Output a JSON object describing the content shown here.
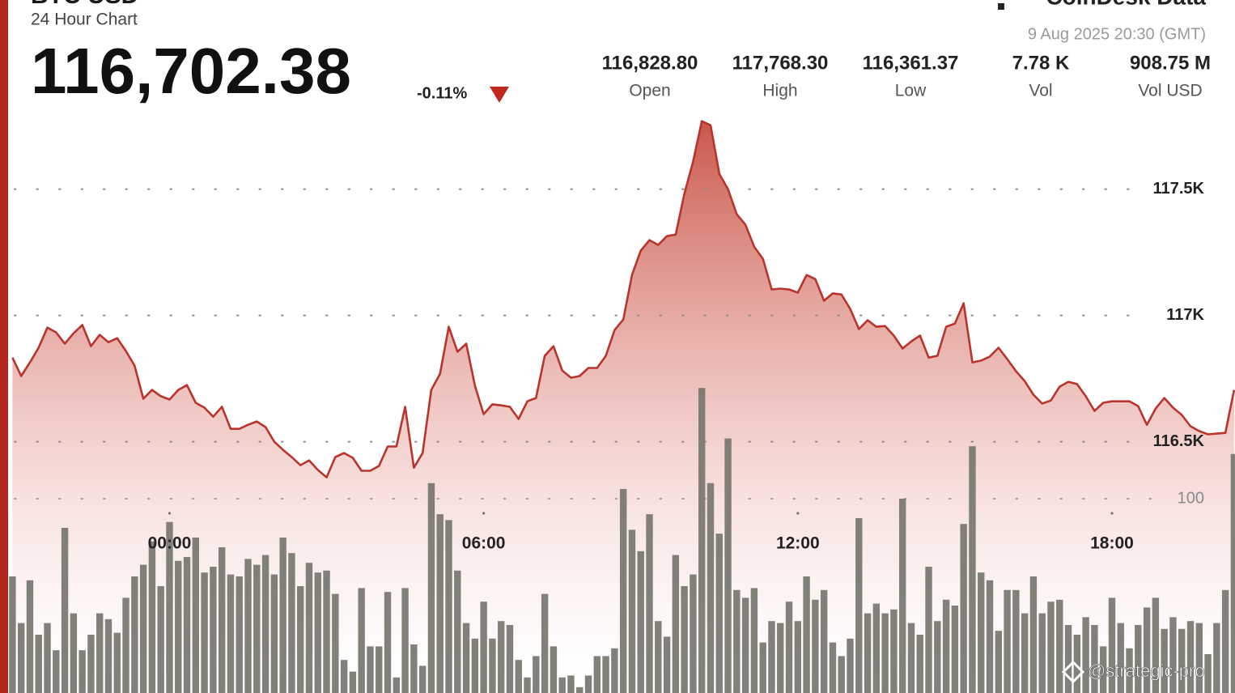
{
  "header": {
    "title": "BTC USD",
    "subtitle": "24 Hour Chart",
    "price": "116,702.38",
    "change": "-0.11%",
    "brand": "CoinDesk Data",
    "timestamp": "9 Aug 2025 20:30 (GMT)",
    "stats": [
      {
        "value": "116,828.80",
        "label": "Open"
      },
      {
        "value": "117,768.30",
        "label": "High"
      },
      {
        "value": "116,361.37",
        "label": "Low"
      },
      {
        "value": "7.78 K",
        "label": "Vol"
      },
      {
        "value": "908.75 M",
        "label": "Vol USD"
      }
    ]
  },
  "watermark": "@strategic-pro",
  "chart_data": {
    "type": "line",
    "x": [
      -180,
      -170,
      -160,
      -150,
      -140,
      -130,
      -120,
      -110,
      -100,
      -90,
      -80,
      -70,
      -60,
      -50,
      -40,
      -30,
      -20,
      -10,
      0,
      10,
      20,
      30,
      40,
      50,
      60,
      70,
      80,
      90,
      100,
      110,
      120,
      130,
      140,
      150,
      160,
      170,
      180,
      190,
      200,
      210,
      220,
      230,
      240,
      250,
      260,
      270,
      280,
      290,
      300,
      310,
      320,
      330,
      340,
      350,
      360,
      370,
      380,
      390,
      400,
      410,
      420,
      430,
      440,
      450,
      460,
      470,
      480,
      490,
      500,
      510,
      520,
      530,
      540,
      550,
      560,
      570,
      580,
      590,
      600,
      610,
      620,
      630,
      640,
      650,
      660,
      670,
      680,
      690,
      700,
      710,
      720,
      730,
      740,
      750,
      760,
      770,
      780,
      790,
      800,
      810,
      820,
      830,
      840,
      850,
      860,
      870,
      880,
      890,
      900,
      910,
      920,
      930,
      940,
      950,
      960,
      970,
      980,
      990,
      1000,
      1010,
      1020,
      1030,
      1040,
      1050,
      1060,
      1070,
      1080,
      1090,
      1100,
      1110,
      1120,
      1130,
      1140,
      1150,
      1160,
      1170,
      1180,
      1190,
      1200,
      1210,
      1220
    ],
    "xlim": [
      -185,
      1221
    ],
    "xticks": [
      {
        "value": 0,
        "label": "00:00"
      },
      {
        "value": 360,
        "label": "06:00"
      },
      {
        "value": 720,
        "label": "12:00"
      },
      {
        "value": 1080,
        "label": "18:00"
      }
    ],
    "ylim": [
      115505,
      117800
    ],
    "yticks": [
      {
        "value": 116500,
        "label": "116.5K"
      },
      {
        "value": 117000,
        "label": "117K"
      },
      {
        "value": 117500,
        "label": "117.5K"
      }
    ],
    "y2lim": [
      0,
      298.3
    ],
    "y2ticks": [
      100
    ],
    "grid": true,
    "series": [
      {
        "color": "#b8342c",
        "values": [
          116833,
          116760,
          116814,
          116872,
          116952,
          116933,
          116888,
          116929,
          116962,
          116878,
          116923,
          116894,
          116910,
          116859,
          116801,
          116670,
          116705,
          116680,
          116667,
          116705,
          116724,
          116654,
          116635,
          116599,
          116638,
          116551,
          116551,
          116567,
          116580,
          116558,
          116500,
          116468,
          116439,
          116407,
          116426,
          116388,
          116359,
          116439,
          116455,
          116436,
          116385,
          116385,
          116404,
          116481,
          116481,
          116638,
          116397,
          116455,
          116705,
          116769,
          116955,
          116856,
          116888,
          116721,
          116609,
          116648,
          116644,
          116638,
          116590,
          116660,
          116673,
          116840,
          116878,
          116782,
          116753,
          116760,
          116792,
          116792,
          116840,
          116942,
          116984,
          117160,
          117256,
          117298,
          117279,
          117314,
          117320,
          117481,
          117609,
          117769,
          117753,
          117561,
          117500,
          117401,
          117359,
          117272,
          117224,
          117103,
          117106,
          117103,
          117090,
          117160,
          117144,
          117058,
          117087,
          117083,
          117026,
          116946,
          116981,
          116955,
          116958,
          116920,
          116869,
          116897,
          116920,
          116833,
          116840,
          116955,
          116968,
          117048,
          116814,
          116821,
          116837,
          116872,
          116827,
          116779,
          116740,
          116686,
          116651,
          116663,
          116718,
          116737,
          116728,
          116680,
          116622,
          116654,
          116660,
          116660,
          116660,
          116641,
          116567,
          116631,
          116673,
          116635,
          116606,
          116561,
          116542,
          116529,
          116532,
          116535,
          116705
        ]
      },
      {
        "type": "bar",
        "axis": "y2",
        "color": "#76766e",
        "values": [
          60,
          36,
          58,
          30,
          36,
          22,
          85,
          41,
          22,
          30,
          41,
          38,
          31,
          49,
          60,
          66,
          78,
          55,
          88,
          68,
          70,
          80,
          62,
          65,
          75,
          61,
          60,
          69,
          66,
          71,
          61,
          80,
          72,
          55,
          67,
          62,
          63,
          51,
          17,
          11,
          54,
          24,
          24,
          52,
          8,
          54,
          25,
          14,
          108,
          92,
          89,
          63,
          36,
          28,
          47,
          28,
          37,
          35,
          17,
          8,
          19,
          51,
          24,
          8,
          9,
          3,
          9,
          19,
          19,
          23,
          105,
          84,
          73,
          92,
          37,
          29,
          71,
          55,
          61,
          157,
          108,
          82,
          131,
          53,
          49,
          54,
          26,
          37,
          36,
          47,
          37,
          60,
          48,
          53,
          26,
          19,
          28,
          90,
          41,
          46,
          41,
          43,
          100,
          36,
          30,
          65,
          37,
          48,
          45,
          87,
          127,
          62,
          58,
          32,
          53,
          53,
          41,
          60,
          41,
          47,
          48,
          35,
          30,
          39,
          35,
          24,
          49,
          36,
          23,
          35,
          44,
          49,
          33,
          39,
          33,
          37,
          36,
          20,
          36,
          53,
          123
        ]
      }
    ]
  }
}
